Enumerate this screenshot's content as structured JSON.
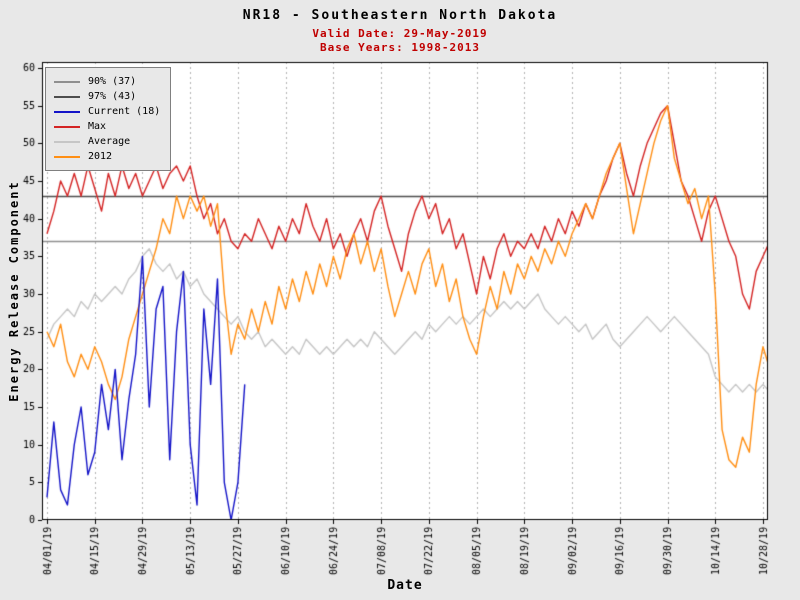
{
  "window": {
    "background": "#e8e8e8",
    "plot_background": "#ffffff"
  },
  "chart_data": {
    "type": "line",
    "title": "NR18 - Southeastern North Dakota",
    "subtitle": [
      "Valid Date: 29-May-2019",
      "Base Years: 1998-2013"
    ],
    "xlabel": "Date",
    "ylabel": "Energy Release Component",
    "ylim": [
      0,
      60
    ],
    "xlim": [
      0,
      210
    ],
    "x_unit": "days since 04/01/19",
    "grid": "vertical-dotted",
    "y_ticks": [
      0,
      5,
      10,
      15,
      20,
      25,
      30,
      35,
      40,
      45,
      50,
      55,
      60
    ],
    "x_ticks": {
      "days": [
        0,
        14,
        28,
        42,
        56,
        70,
        84,
        98,
        112,
        126,
        140,
        154,
        168,
        182,
        196,
        210
      ],
      "labels": [
        "04/01/19",
        "04/15/19",
        "04/29/19",
        "05/13/19",
        "05/27/19",
        "06/10/19",
        "06/24/19",
        "07/08/19",
        "07/22/19",
        "08/05/19",
        "08/19/19",
        "09/02/19",
        "09/16/19",
        "09/30/19",
        "10/14/19",
        "10/28/19"
      ]
    },
    "reference_lines": [
      {
        "label": "90% (37)",
        "value": 37,
        "color": "#8f8f8f"
      },
      {
        "label": "97% (43)",
        "value": 43,
        "color": "#4d4d4d"
      }
    ],
    "draw_order": [
      "Average",
      "Max",
      "2012",
      "Current (18)"
    ],
    "series": [
      {
        "name": "Average",
        "color": "#c6c6c6",
        "x_start": 0,
        "x_step": 2,
        "values": [
          24,
          26,
          27,
          28,
          27,
          29,
          28,
          30,
          29,
          30,
          31,
          30,
          32,
          33,
          35,
          36,
          34,
          33,
          34,
          32,
          33,
          31,
          32,
          30,
          29,
          28,
          27,
          26,
          27,
          25,
          24,
          25,
          23,
          24,
          23,
          22,
          23,
          22,
          24,
          23,
          22,
          23,
          22,
          23,
          24,
          23,
          24,
          23,
          25,
          24,
          23,
          22,
          23,
          24,
          25,
          24,
          26,
          25,
          26,
          27,
          26,
          27,
          26,
          27,
          28,
          27,
          28,
          29,
          28,
          29,
          28,
          29,
          30,
          28,
          27,
          26,
          27,
          26,
          25,
          26,
          24,
          25,
          26,
          24,
          23,
          24,
          25,
          26,
          27,
          26,
          25,
          26,
          27,
          26,
          25,
          24,
          23,
          22,
          19,
          18,
          17,
          18,
          17,
          18,
          17,
          18,
          17
        ]
      },
      {
        "name": "Max",
        "color": "#d42424",
        "x_start": 0,
        "x_step": 2,
        "values": [
          38,
          41,
          45,
          43,
          46,
          43,
          47,
          44,
          41,
          46,
          43,
          47,
          44,
          46,
          43,
          45,
          47,
          44,
          46,
          47,
          45,
          47,
          43,
          40,
          42,
          38,
          40,
          37,
          36,
          38,
          37,
          40,
          38,
          36,
          39,
          37,
          40,
          38,
          42,
          39,
          37,
          40,
          36,
          38,
          35,
          38,
          40,
          37,
          41,
          43,
          39,
          36,
          33,
          38,
          41,
          43,
          40,
          42,
          38,
          40,
          36,
          38,
          34,
          30,
          35,
          32,
          36,
          38,
          35,
          37,
          36,
          38,
          36,
          39,
          37,
          40,
          38,
          41,
          39,
          42,
          40,
          43,
          45,
          48,
          50,
          46,
          43,
          47,
          50,
          52,
          54,
          55,
          50,
          45,
          43,
          40,
          37,
          41,
          43,
          40,
          37,
          35,
          30,
          28,
          33,
          35,
          37
        ]
      },
      {
        "name": "2012",
        "color": "#ff8f14",
        "x_start": 0,
        "x_step": 2,
        "values": [
          25,
          23,
          26,
          21,
          19,
          22,
          20,
          23,
          21,
          18,
          16,
          19,
          24,
          27,
          30,
          33,
          36,
          40,
          38,
          43,
          40,
          43,
          41,
          43,
          39,
          42,
          30,
          22,
          26,
          24,
          28,
          25,
          29,
          26,
          31,
          28,
          32,
          29,
          33,
          30,
          34,
          31,
          35,
          32,
          36,
          38,
          34,
          37,
          33,
          36,
          31,
          27,
          30,
          33,
          30,
          34,
          36,
          31,
          34,
          29,
          32,
          27,
          24,
          22,
          27,
          31,
          28,
          33,
          30,
          34,
          32,
          35,
          33,
          36,
          34,
          37,
          35,
          38,
          40,
          42,
          40,
          43,
          46,
          48,
          50,
          44,
          38,
          42,
          46,
          50,
          53,
          55,
          48,
          45,
          42,
          44,
          40,
          43,
          30,
          12,
          8,
          7,
          11,
          9,
          18,
          23,
          20
        ]
      },
      {
        "name": "Current (18)",
        "color": "#1414c8",
        "x_start": 0,
        "x_step": 2,
        "values": [
          3,
          13,
          4,
          2,
          10,
          15,
          6,
          9,
          18,
          12,
          20,
          8,
          16,
          22,
          35,
          15,
          28,
          31,
          8,
          25,
          33,
          10,
          2,
          28,
          18,
          32,
          5,
          0,
          5,
          18
        ]
      }
    ],
    "legend": {
      "position": "upper-left",
      "entries": [
        {
          "label": "90% (37)",
          "color": "#8f8f8f"
        },
        {
          "label": "97% (43)",
          "color": "#4d4d4d"
        },
        {
          "label": "Current (18)",
          "color": "#1414c8"
        },
        {
          "label": "Max",
          "color": "#d42424"
        },
        {
          "label": "Average",
          "color": "#c6c6c6"
        },
        {
          "label": "2012",
          "color": "#ff8f14"
        }
      ]
    }
  }
}
